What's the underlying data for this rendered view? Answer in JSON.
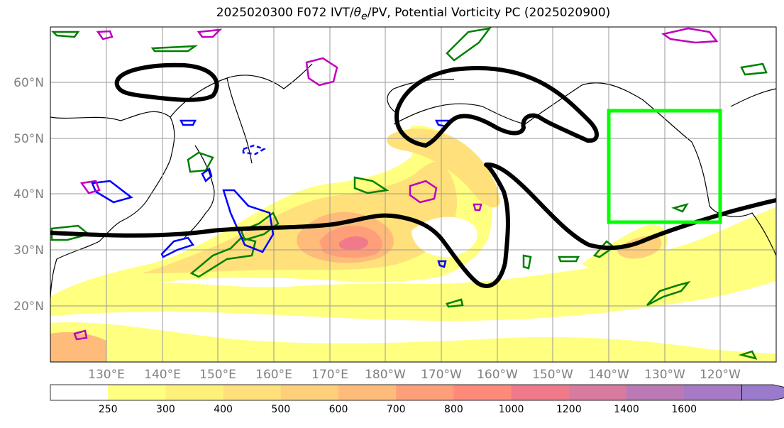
{
  "title_prefix": "2025020300 F072 IVT/",
  "title_theta": "θ",
  "title_sub": "e",
  "title_suffix": "/PV, Potential Vorticity PC (2025020900)",
  "lat_labels": [
    "60°N",
    "50°N",
    "40°N",
    "30°N",
    "20°N"
  ],
  "lon_labels": [
    "130°E",
    "140°E",
    "150°E",
    "160°E",
    "170°E",
    "180°W",
    "170°W",
    "160°W",
    "150°W",
    "140°W",
    "130°W",
    "120°W"
  ],
  "map_extent": {
    "lon_west": 120,
    "lon_east": 250,
    "lat_south": 10,
    "lat_north": 70
  },
  "colorbar": {
    "levels": [
      "250",
      "300",
      "400",
      "500",
      "600",
      "700",
      "800",
      "1000",
      "1200",
      "1400",
      "1600"
    ],
    "colors": [
      "#ffffff",
      "#ffff80",
      "#fff07a",
      "#ffe07a",
      "#ffcf7a",
      "#ffbb7a",
      "#ff9f7a",
      "#ff8a7a",
      "#f07a8a",
      "#d97aa0",
      "#bb7ab5",
      "#a67ac4",
      "#9a7acb"
    ]
  },
  "highlight_box": {
    "label": "",
    "color": "#00ff00",
    "lon_west": 220,
    "lon_east": 240,
    "lat_south": 35,
    "lat_north": 55
  }
}
